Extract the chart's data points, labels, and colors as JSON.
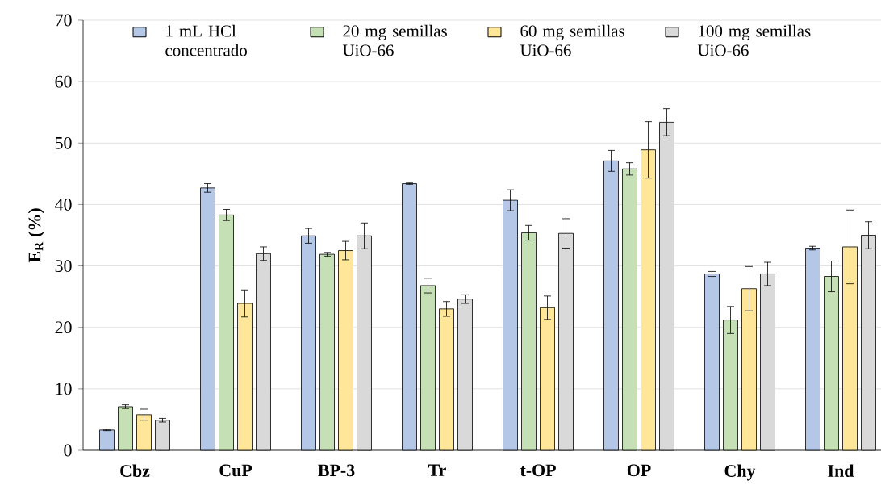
{
  "chart_data": {
    "type": "bar",
    "ylabel": "E$_{R}$ (%)",
    "categories": [
      "Cbz",
      "CuP",
      "BP-3",
      "Tr",
      "t-OP",
      "OP",
      "Chy",
      "Ind"
    ],
    "ylim": [
      0,
      70
    ],
    "yticks": [
      0,
      10,
      20,
      30,
      40,
      50,
      60,
      70
    ],
    "grid": "y",
    "legend": "top",
    "series": [
      {
        "name": "1 mL HCl concentrado",
        "color": "#b4c7e7",
        "values": [
          3.3,
          42.7,
          34.9,
          43.4,
          40.7,
          47.1,
          28.7,
          32.9
        ],
        "errors": [
          0.1,
          0.7,
          1.2,
          0.1,
          1.7,
          1.7,
          0.4,
          0.3
        ]
      },
      {
        "name": "20 mg semillas UiO-66",
        "color": "#c5e0b4",
        "values": [
          7.1,
          38.3,
          31.9,
          26.8,
          35.4,
          45.8,
          21.2,
          28.3
        ],
        "errors": [
          0.3,
          0.9,
          0.3,
          1.2,
          1.2,
          1.0,
          2.2,
          2.5
        ]
      },
      {
        "name": "60 mg semillas UiO-66",
        "color": "#ffe699",
        "values": [
          5.8,
          23.9,
          32.5,
          23.0,
          23.2,
          48.9,
          26.3,
          33.1
        ],
        "errors": [
          0.9,
          2.2,
          1.5,
          1.2,
          1.9,
          4.6,
          3.6,
          6.0
        ]
      },
      {
        "name": "100 mg semillas UiO-66",
        "color": "#d9d9d9",
        "values": [
          4.9,
          32.0,
          34.9,
          24.6,
          35.3,
          53.4,
          28.7,
          35.0
        ],
        "errors": [
          0.3,
          1.1,
          2.1,
          0.7,
          2.4,
          2.2,
          1.9,
          2.2
        ]
      }
    ]
  }
}
